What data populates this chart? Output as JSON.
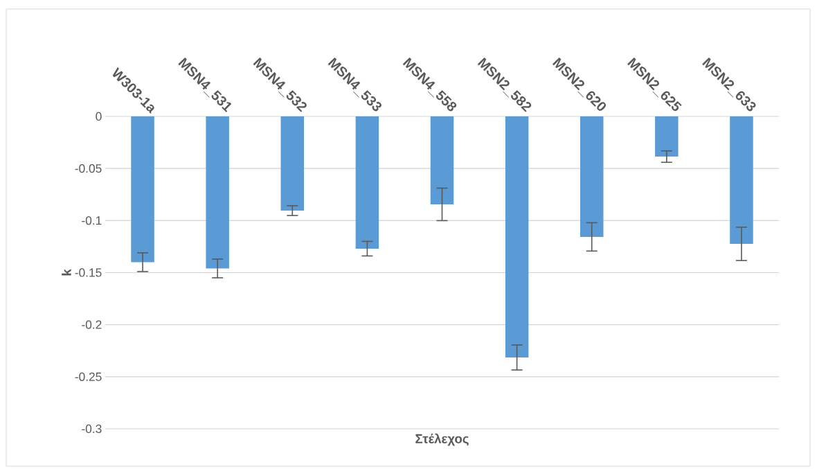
{
  "chart_data": {
    "type": "bar",
    "xlabel": "Στέλεχος",
    "ylabel": "k",
    "categories": [
      "W303-1a",
      "MSN4_531",
      "MSN4_532",
      "MSN4_533",
      "MSN4_558",
      "MSN2_582",
      "MSN2_620",
      "MSN2_625",
      "MSN2_633"
    ],
    "values": [
      -0.14,
      -0.146,
      -0.0905,
      -0.127,
      -0.0845,
      -0.2315,
      -0.1157,
      -0.0386,
      -0.1224
    ],
    "errors": [
      0.009,
      0.009,
      0.0047,
      0.007,
      0.0156,
      0.012,
      0.0136,
      0.0055,
      0.016
    ],
    "color": "#5b9bd5",
    "ylim": [
      -0.3,
      0
    ],
    "yticks": [
      -0.3,
      -0.25,
      -0.2,
      -0.15,
      -0.1,
      -0.05,
      0
    ],
    "grid": "y"
  }
}
